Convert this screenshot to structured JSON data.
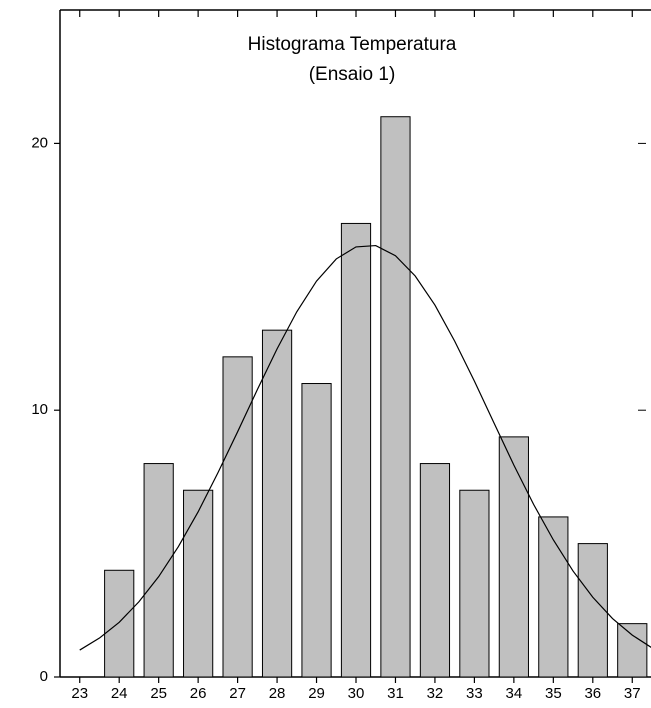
{
  "chart_data": {
    "type": "bar",
    "title": "Histograma Temperatura",
    "subtitle": "(Ensaio 1)",
    "x": [
      23,
      24,
      25,
      26,
      27,
      28,
      29,
      30,
      31,
      32,
      33,
      34,
      35,
      36,
      37
    ],
    "values": [
      0,
      4,
      8,
      7,
      12,
      13,
      11,
      17,
      21,
      8,
      7,
      9,
      6,
      5,
      2
    ],
    "color": "#c0c0c0",
    "xlim": [
      22.5,
      37.5
    ],
    "xticks": [
      23,
      24,
      25,
      26,
      27,
      28,
      29,
      30,
      31,
      32,
      33,
      34,
      35,
      36,
      37
    ],
    "ylim": [
      0,
      25
    ],
    "yticks": [
      0,
      10,
      20
    ],
    "fit": {
      "color": "#000000",
      "x": [
        23,
        23.5,
        24,
        24.5,
        25,
        25.5,
        26,
        26.5,
        27,
        27.5,
        28,
        28.5,
        29,
        29.5,
        30,
        30.5,
        31,
        31.5,
        32,
        32.5,
        33,
        33.5,
        34,
        34.5,
        35,
        35.5,
        36,
        36.5,
        37,
        37.5
      ],
      "values": [
        1.01,
        1.46,
        2.05,
        2.82,
        3.76,
        4.89,
        6.19,
        7.65,
        9.19,
        10.77,
        12.3,
        13.69,
        14.84,
        15.67,
        16.12,
        16.17,
        15.79,
        15.03,
        13.94,
        12.59,
        11.09,
        9.51,
        7.94,
        6.47,
        5.14,
        3.97,
        2.99,
        2.19,
        1.57,
        1.09
      ]
    }
  }
}
